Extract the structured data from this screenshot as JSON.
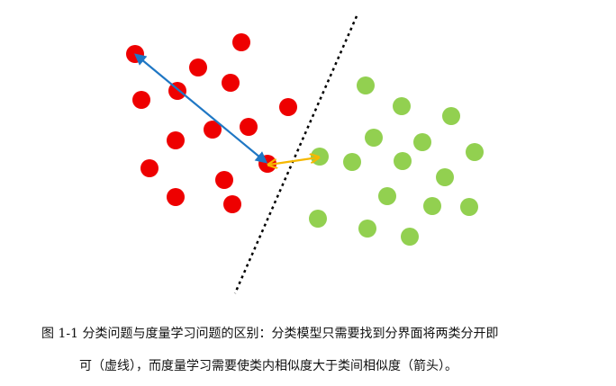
{
  "figure": {
    "caption_line1": "图 1-1 分类问题与度量学习问题的区别：分类模型只需要找到分界面将两类分开即",
    "caption_line2": "可（虚线），而度量学习需要使类内相似度大于类间相似度（箭头）。"
  },
  "colors": {
    "class_a": "#ee0000",
    "class_b": "#92d050",
    "intra_class_arrow": "#1f77c4",
    "inter_class_arrow": "#f5b800",
    "boundary": "#000000"
  }
}
